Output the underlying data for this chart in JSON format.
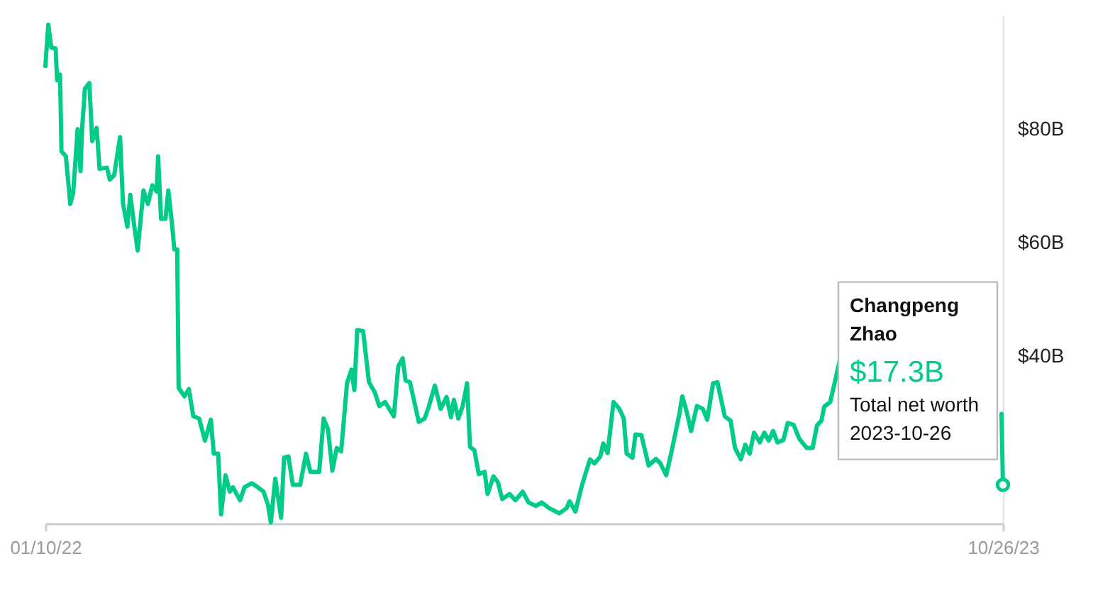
{
  "chart_data": {
    "type": "line",
    "x": [
      "2022-01-10",
      "2022-01-12",
      "2022-01-14",
      "2022-01-17",
      "2022-01-18",
      "2022-01-20",
      "2022-01-21",
      "2022-01-24",
      "2022-01-27",
      "2022-01-29",
      "2022-02-01",
      "2022-02-03",
      "2022-02-04",
      "2022-02-06",
      "2022-02-09",
      "2022-02-11",
      "2022-02-14",
      "2022-02-16",
      "2022-02-21",
      "2022-02-23",
      "2022-02-26",
      "2022-03-02",
      "2022-03-04",
      "2022-03-07",
      "2022-03-09",
      "2022-03-12",
      "2022-03-14",
      "2022-03-18",
      "2022-03-21",
      "2022-03-24",
      "2022-03-27",
      "2022-03-28",
      "2022-03-30",
      "2022-04-02",
      "2022-04-04",
      "2022-04-07",
      "2022-04-08",
      "2022-04-10",
      "2022-04-11",
      "2022-04-15",
      "2022-04-18",
      "2022-04-21",
      "2022-04-25",
      "2022-04-29",
      "2022-05-03",
      "2022-05-05",
      "2022-05-08",
      "2022-05-10",
      "2022-05-13",
      "2022-05-16",
      "2022-05-18",
      "2022-05-23",
      "2022-05-26",
      "2022-05-31",
      "2022-06-04",
      "2022-06-08",
      "2022-06-11",
      "2022-06-13",
      "2022-06-16",
      "2022-06-20",
      "2022-06-22",
      "2022-06-25",
      "2022-06-28",
      "2022-07-03",
      "2022-07-07",
      "2022-07-10",
      "2022-07-16",
      "2022-07-19",
      "2022-07-22",
      "2022-07-25",
      "2022-07-28",
      "2022-07-31",
      "2022-08-04",
      "2022-08-07",
      "2022-08-09",
      "2022-08-11",
      "2022-08-15",
      "2022-08-19",
      "2022-08-23",
      "2022-08-26",
      "2022-08-30",
      "2022-09-05",
      "2022-09-08",
      "2022-09-11",
      "2022-09-13",
      "2022-09-16",
      "2022-09-22",
      "2022-09-26",
      "2022-09-29",
      "2022-10-03",
      "2022-10-07",
      "2022-10-11",
      "2022-10-14",
      "2022-10-16",
      "2022-10-19",
      "2022-10-22",
      "2022-10-25",
      "2022-10-27",
      "2022-10-30",
      "2022-11-02",
      "2022-11-06",
      "2022-11-08",
      "2022-11-12",
      "2022-11-15",
      "2022-11-18",
      "2022-11-23",
      "2022-11-27",
      "2022-12-02",
      "2022-12-06",
      "2022-12-11",
      "2022-12-15",
      "2022-12-20",
      "2022-12-27",
      "2023-01-01",
      "2023-01-03",
      "2023-01-07",
      "2023-01-11",
      "2023-01-14",
      "2023-01-17",
      "2023-01-20",
      "2023-01-24",
      "2023-01-26",
      "2023-01-29",
      "2023-02-02",
      "2023-02-06",
      "2023-02-09",
      "2023-02-11",
      "2023-02-15",
      "2023-02-17",
      "2023-02-21",
      "2023-02-26",
      "2023-03-03",
      "2023-03-06",
      "2023-03-10",
      "2023-03-14",
      "2023-03-19",
      "2023-03-21",
      "2023-03-24",
      "2023-03-27",
      "2023-03-31",
      "2023-04-04",
      "2023-04-07",
      "2023-04-11",
      "2023-04-14",
      "2023-04-19",
      "2023-04-23",
      "2023-04-26",
      "2023-04-30",
      "2023-05-03",
      "2023-05-06",
      "2023-05-09",
      "2023-05-13",
      "2023-05-16",
      "2023-05-19",
      "2023-05-22",
      "2023-05-25",
      "2023-05-29",
      "2023-06-01",
      "2023-06-05",
      "2023-06-09",
      "2023-06-14",
      "2023-06-18",
      "2023-06-21",
      "2023-06-24",
      "2023-06-26",
      "2023-06-30",
      "2023-07-03",
      "2023-07-07",
      "2023-08-15",
      "2023-10-25",
      "2023-10-26"
    ],
    "series": [
      {
        "color": "#00cc88",
        "values": [
          91.1,
          98.4,
          94.4,
          94.2,
          88.6,
          89.6,
          76.1,
          75.2,
          66.8,
          68.8,
          80,
          72.6,
          79.8,
          87.1,
          88.1,
          77.9,
          80.2,
          73,
          73.2,
          71.1,
          71.9,
          78.6,
          66.9,
          62.8,
          68.4,
          62.3,
          58.6,
          69.2,
          66.8,
          70.1,
          69,
          75.2,
          64.2,
          64.2,
          69.2,
          61.9,
          58.8,
          58.8,
          34.4,
          32.9,
          34.2,
          29.4,
          29,
          25.1,
          28.8,
          22.8,
          22.8,
          12.1,
          19,
          16.1,
          16.9,
          14.6,
          16.9,
          17.6,
          16.9,
          16.1,
          13.8,
          10.7,
          18.4,
          11.5,
          22.1,
          22.3,
          17.3,
          17.3,
          22.8,
          19.6,
          19.6,
          29,
          27.1,
          19.8,
          23.8,
          23.2,
          35.2,
          37.6,
          34,
          44.6,
          44.4,
          35.4,
          33.6,
          31.2,
          31.9,
          29.4,
          38.2,
          39.6,
          35.7,
          35.4,
          28.4,
          29,
          31.2,
          34.8,
          30.7,
          32.8,
          29.2,
          32.3,
          29,
          31.2,
          35.2,
          24,
          23.4,
          19.2,
          19.6,
          15.7,
          18.8,
          17.8,
          14.8,
          15.7,
          14.6,
          16.1,
          14.2,
          13.6,
          14.2,
          13.2,
          12.3,
          13.2,
          14.4,
          12.6,
          16.8,
          19.4,
          21.8,
          21.1,
          22.3,
          24.6,
          22.9,
          31.9,
          30.7,
          29,
          22.8,
          22.1,
          26.2,
          26.1,
          20.7,
          21.9,
          21.1,
          19,
          23.6,
          29.8,
          32.9,
          30.2,
          26.8,
          31.2,
          30.7,
          28.8,
          35.2,
          35.4,
          29.4,
          28.6,
          23.8,
          21.8,
          24.4,
          22.8,
          26.5,
          24.8,
          26.5,
          25.1,
          26.8,
          24.8,
          25.2,
          28.2,
          27.9,
          25.4,
          23.8,
          23.8,
          27.8,
          28.6,
          31.1,
          31.9,
          35.2,
          39.8,
          null,
          29.8,
          17.3
        ]
      }
    ],
    "xlim": [
      "2022-01-10",
      "2023-10-26"
    ],
    "xticks": [
      {
        "value": "2022-01-10",
        "label": "01/10/22"
      },
      {
        "value": "2023-10-26",
        "label": "10/26/23"
      }
    ],
    "ylim": [
      10.5,
      100
    ],
    "yticks": [
      {
        "value": 40,
        "label": "$40B"
      },
      {
        "value": 60,
        "label": "$60B"
      },
      {
        "value": 80,
        "label": "$80B"
      }
    ],
    "annotations": [
      "Changpeng Zhao",
      "$17.3B",
      "Total net worth",
      "2023-10-26"
    ]
  }
}
